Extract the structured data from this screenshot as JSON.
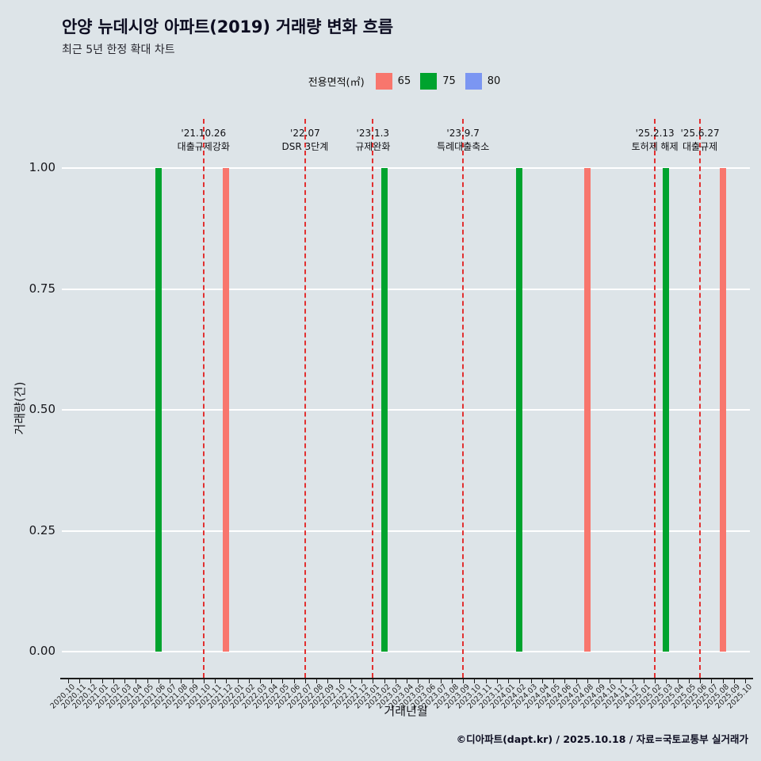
{
  "header": {
    "title": "안양 뉴데시앙 아파트(2019) 거래량 변화 흐름",
    "subtitle": "최근 5년 한정 확대 차트"
  },
  "legend": {
    "label": "전용면적(㎡)",
    "items": [
      {
        "label": "65",
        "color": "#f8766d"
      },
      {
        "label": "75",
        "color": "#00a32e"
      },
      {
        "label": "80",
        "color": "#7b96f2"
      }
    ]
  },
  "chart_data": {
    "type": "bar",
    "title": "안양 뉴데시앙 아파트(2019) 거래량 변화 흐름",
    "subtitle": "최근 5년 한정 확대 차트",
    "xlabel": "거래년월",
    "ylabel": "거래량(건)",
    "ylim": [
      0,
      1
    ],
    "grid": true,
    "legend_position": "top",
    "yticks": [
      0,
      0.25,
      0.5,
      0.75,
      1
    ],
    "ytick_labels": [
      "0.00",
      "0.25",
      "0.50",
      "0.75",
      "1.00"
    ],
    "categories": [
      "2020.10",
      "2020.11",
      "2020.12",
      "2021.01",
      "2021.02",
      "2021.03",
      "2021.04",
      "2021.05",
      "2021.06",
      "2021.07",
      "2021.08",
      "2021.09",
      "2021.10",
      "2021.11",
      "2021.12",
      "2022.01",
      "2022.02",
      "2022.03",
      "2022.04",
      "2022.05",
      "2022.06",
      "2022.07",
      "2022.08",
      "2022.09",
      "2022.10",
      "2022.11",
      "2022.12",
      "2023.01",
      "2023.02",
      "2023.03",
      "2023.04",
      "2023.05",
      "2023.06",
      "2023.07",
      "2023.08",
      "2023.09",
      "2023.10",
      "2023.11",
      "2023.12",
      "2024.01",
      "2024.02",
      "2024.03",
      "2024.04",
      "2024.05",
      "2024.06",
      "2024.07",
      "2024.08",
      "2024.09",
      "2024.10",
      "2024.11",
      "2024.12",
      "2025.01",
      "2025.02",
      "2025.03",
      "2025.04",
      "2025.05",
      "2025.06",
      "2025.07",
      "2025.08",
      "2025.09",
      "2025.10"
    ],
    "series": [
      {
        "name": "65",
        "color": "#f8766d",
        "points": {
          "2021.12": 1,
          "2024.08": 1,
          "2025.08": 1
        }
      },
      {
        "name": "75",
        "color": "#00a32e",
        "points": {
          "2021.06": 1,
          "2023.02": 1,
          "2024.02": 1,
          "2025.03": 1
        }
      },
      {
        "name": "80",
        "color": "#7b96f2",
        "points": {}
      }
    ],
    "annotations": [
      {
        "date": "'21.10.26",
        "label": "대출규제강화",
        "month": "2021.10"
      },
      {
        "date": "'22.07",
        "label": "DSR 3단계",
        "month": "2022.07"
      },
      {
        "date": "'23.1.3",
        "label": "규제완화",
        "month": "2023.01"
      },
      {
        "date": "'23.9.7",
        "label": "특례대출축소",
        "month": "2023.09"
      },
      {
        "date": "'25.2.13",
        "label": "토허제 해제",
        "month": "2025.02"
      },
      {
        "date": "'25.6.27",
        "label": "대출규제",
        "month": "2025.06"
      }
    ]
  },
  "footer": {
    "credit": "©디아파트(dapt.kr) / 2025.10.18 / 자료=국토교통부 실거래가"
  }
}
